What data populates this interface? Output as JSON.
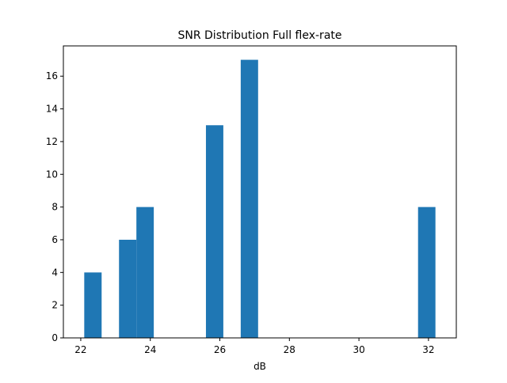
{
  "chart_data": {
    "type": "bar",
    "title": "SNR Distribution Full flex-rate",
    "xlabel": "dB",
    "ylabel": "",
    "xlim": [
      21.5,
      32.8
    ],
    "ylim": [
      0,
      17.85
    ],
    "xticks": [
      22,
      24,
      26,
      28,
      30,
      32
    ],
    "yticks": [
      0,
      2,
      4,
      6,
      8,
      10,
      12,
      14,
      16
    ],
    "grid": false,
    "bar_color": "#1f77b4",
    "bins": [
      {
        "x0": 22.1,
        "x1": 22.6,
        "count": 4
      },
      {
        "x0": 23.1,
        "x1": 23.6,
        "count": 6
      },
      {
        "x0": 23.6,
        "x1": 24.1,
        "count": 8
      },
      {
        "x0": 25.6,
        "x1": 26.1,
        "count": 13
      },
      {
        "x0": 26.6,
        "x1": 27.1,
        "count": 17
      },
      {
        "x0": 31.7,
        "x1": 32.2,
        "count": 8
      }
    ]
  }
}
